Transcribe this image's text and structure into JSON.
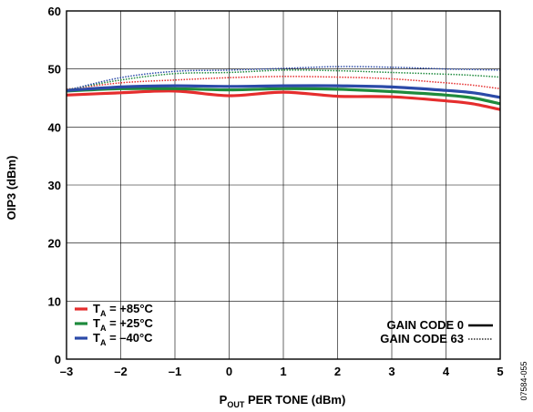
{
  "chart_data": {
    "type": "line",
    "xlabel_main": "P",
    "xlabel_sub": "OUT",
    "xlabel_rest": " PER TONE (dBm)",
    "ylabel": "OIP3 (dBm)",
    "xlim": [
      -3,
      5
    ],
    "ylim": [
      0,
      60
    ],
    "xticks": [
      -3,
      -2,
      -1,
      0,
      1,
      2,
      3,
      4,
      5
    ],
    "xtick_labels": [
      "–3",
      "–2",
      "–1",
      "0",
      "1",
      "2",
      "3",
      "4",
      "5"
    ],
    "yticks": [
      0,
      10,
      20,
      30,
      40,
      50,
      60
    ],
    "ytick_labels": [
      "0",
      "10",
      "20",
      "30",
      "40",
      "50",
      "60"
    ],
    "grid": true,
    "figure_id": "07584-055",
    "temperature_legend": [
      {
        "prefix": "T",
        "sub": "A",
        "suffix": " = +85°C",
        "color": "#e52d2d"
      },
      {
        "prefix": "T",
        "sub": "A",
        "suffix": " = +25°C",
        "color": "#1e8a3c"
      },
      {
        "prefix": "T",
        "sub": "A",
        "suffix": " = –40°C",
        "color": "#2b4aa8"
      }
    ],
    "style_legend": [
      {
        "label": "GAIN CODE 0",
        "style": "solid"
      },
      {
        "label": "GAIN CODE 63",
        "style": "dotted"
      }
    ],
    "x": [
      -3,
      -2,
      -1,
      0,
      1,
      2,
      3,
      4,
      4.5,
      5
    ],
    "series": [
      {
        "name": "T_A = +85°C, GAIN CODE 0",
        "color": "#e52d2d",
        "style": "solid",
        "values": [
          45.5,
          45.9,
          46.2,
          45.4,
          46.0,
          45.3,
          45.2,
          44.5,
          44.0,
          43.0
        ]
      },
      {
        "name": "T_A = +25°C, GAIN CODE 0",
        "color": "#1e8a3c",
        "style": "solid",
        "values": [
          46.2,
          46.6,
          46.6,
          46.4,
          46.6,
          46.5,
          46.1,
          45.5,
          45.0,
          44.0
        ]
      },
      {
        "name": "T_A = –40°C, GAIN CODE 0",
        "color": "#2b4aa8",
        "style": "solid",
        "values": [
          46.3,
          46.9,
          47.1,
          47.0,
          47.1,
          47.1,
          46.9,
          46.3,
          45.9,
          45.1
        ]
      },
      {
        "name": "T_A = +85°C, GAIN CODE 63",
        "color": "#e52d2d",
        "style": "dotted",
        "values": [
          46.5,
          47.6,
          48.1,
          48.5,
          48.7,
          48.6,
          48.3,
          47.6,
          47.2,
          46.6
        ]
      },
      {
        "name": "T_A = +25°C, GAIN CODE 63",
        "color": "#1e8a3c",
        "style": "dotted",
        "values": [
          46.4,
          48.1,
          49.2,
          49.4,
          49.8,
          49.7,
          49.4,
          49.1,
          48.9,
          48.6
        ]
      },
      {
        "name": "T_A = –40°C, GAIN CODE 63",
        "color": "#2b4aa8",
        "style": "dotted",
        "values": [
          46.3,
          48.5,
          49.6,
          49.8,
          50.1,
          50.4,
          50.3,
          50.0,
          49.9,
          49.8
        ]
      }
    ]
  }
}
